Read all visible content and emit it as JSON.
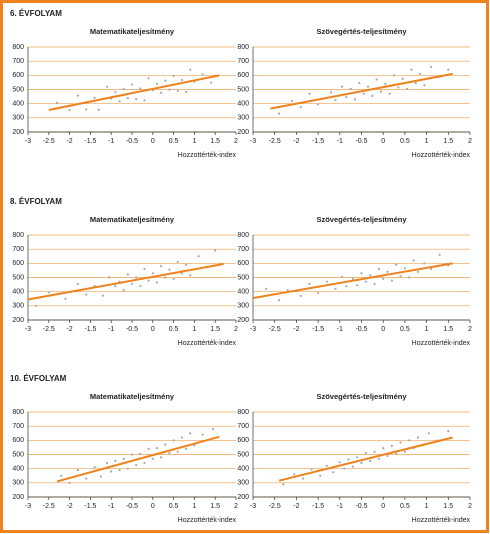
{
  "section_titles": [
    "6. ÉVFOLYAM",
    "8. ÉVFOLYAM",
    "10. ÉVFOLYAM"
  ],
  "chart_data": [
    {
      "type": "scatter",
      "title": "Matematikateljesítmény",
      "x_label": "Hozzottérték-index",
      "xlim": [
        -3,
        2
      ],
      "xticks": [
        -3,
        -2.5,
        -2,
        -1.5,
        -1,
        -0.5,
        0,
        0.5,
        1,
        1.5,
        2
      ],
      "ylim": [
        200,
        800
      ],
      "yticks": [
        200,
        300,
        400,
        500,
        600,
        700,
        800
      ],
      "grid": true,
      "points": {
        "color": "#a8a8a8",
        "x": [
          -2.3,
          -2.0,
          -1.8,
          -1.6,
          -1.4,
          -1.3,
          -1.1,
          -1.0,
          -0.9,
          -0.8,
          -0.7,
          -0.6,
          -0.5,
          -0.4,
          -0.3,
          -0.2,
          -0.1,
          0,
          0.1,
          0.2,
          0.3,
          0.4,
          0.5,
          0.6,
          0.7,
          0.8,
          0.9,
          1.0,
          1.2,
          1.4
        ],
        "y": [
          407,
          355,
          457,
          359,
          441,
          357,
          519,
          435,
          481,
          417,
          503,
          439,
          535,
          431,
          507,
          423,
          579,
          495,
          541,
          477,
          563,
          499,
          595,
          491,
          567,
          483,
          639,
          555,
          607,
          549
        ]
      },
      "trend": {
        "color": "#f0821e",
        "x": [
          -2.5,
          1.6
        ],
        "y": [
          355,
          600
        ]
      }
    },
    {
      "type": "scatter",
      "title": "Szövegértés-teljesítmény",
      "x_label": "Hozzottérték-index",
      "xlim": [
        -3,
        2
      ],
      "xticks": [
        -3,
        -2.5,
        -2,
        -1.5,
        -1,
        -0.5,
        0,
        0.5,
        1,
        1.5,
        2
      ],
      "ylim": [
        200,
        800
      ],
      "yticks": [
        200,
        300,
        400,
        500,
        600,
        700,
        800
      ],
      "grid": true,
      "points": {
        "color": "#a8a8a8",
        "x": [
          -2.4,
          -2.1,
          -1.9,
          -1.7,
          -1.5,
          -1.2,
          -1.1,
          -0.95,
          -0.85,
          -0.75,
          -0.65,
          -0.55,
          -0.45,
          -0.35,
          -0.25,
          -0.15,
          -0.05,
          0.05,
          0.15,
          0.25,
          0.35,
          0.45,
          0.55,
          0.65,
          0.75,
          0.85,
          0.95,
          1.1,
          1.3,
          1.5
        ],
        "y": [
          330,
          420,
          376,
          470,
          395,
          480,
          425,
          520,
          446,
          505,
          430,
          545,
          470,
          520,
          455,
          570,
          485,
          540,
          470,
          600,
          515,
          575,
          505,
          640,
          545,
          610,
          530,
          660,
          590,
          640
        ]
      },
      "trend": {
        "color": "#f0821e",
        "x": [
          -2.6,
          1.6
        ],
        "y": [
          365,
          610
        ]
      }
    },
    {
      "type": "scatter",
      "title": "Matematikateljesítmény",
      "x_label": "Hozzottérték-index",
      "xlim": [
        -3,
        2
      ],
      "xticks": [
        -3,
        -2.5,
        -2,
        -1.5,
        -1,
        -0.5,
        0,
        0.5,
        1,
        1.5,
        2
      ],
      "ylim": [
        200,
        800
      ],
      "yticks": [
        200,
        300,
        400,
        500,
        600,
        700,
        800
      ],
      "grid": true,
      "points": {
        "color": "#a8a8a8",
        "x": [
          -2.8,
          -2.5,
          -2.1,
          -1.8,
          -1.6,
          -1.4,
          -1.2,
          -1.05,
          -0.9,
          -0.8,
          -0.7,
          -0.6,
          -0.5,
          -0.4,
          -0.3,
          -0.2,
          -0.1,
          0,
          0.1,
          0.2,
          0.3,
          0.4,
          0.5,
          0.6,
          0.7,
          0.8,
          0.9,
          1.1,
          1.3,
          1.5
        ],
        "y": [
          300,
          395,
          350,
          455,
          380,
          440,
          372,
          500,
          440,
          470,
          412,
          522,
          455,
          500,
          440,
          560,
          478,
          530,
          465,
          580,
          500,
          555,
          490,
          610,
          530,
          590,
          515,
          650,
          575,
          690
        ]
      },
      "trend": {
        "color": "#f0821e",
        "x": [
          -3,
          1.7
        ],
        "y": [
          345,
          595
        ]
      }
    },
    {
      "type": "scatter",
      "title": "Szövegértés-teljesítmény",
      "x_label": "Hozzottérték-index",
      "xlim": [
        -3,
        2
      ],
      "xticks": [
        -3,
        -2.5,
        -2,
        -1.5,
        -1,
        -0.5,
        0,
        0.5,
        1,
        1.5,
        2
      ],
      "ylim": [
        200,
        800
      ],
      "yticks": [
        200,
        300,
        400,
        500,
        600,
        700,
        800
      ],
      "grid": true,
      "points": {
        "color": "#a8a8a8",
        "x": [
          -2.7,
          -2.4,
          -2.2,
          -1.9,
          -1.7,
          -1.5,
          -1.3,
          -1.1,
          -0.95,
          -0.85,
          -0.7,
          -0.6,
          -0.5,
          -0.4,
          -0.3,
          -0.2,
          -0.1,
          0,
          0.1,
          0.2,
          0.3,
          0.4,
          0.5,
          0.6,
          0.7,
          0.8,
          0.95,
          1.1,
          1.3,
          1.5
        ],
        "y": [
          420,
          340,
          410,
          370,
          455,
          392,
          470,
          420,
          505,
          438,
          490,
          445,
          530,
          470,
          515,
          455,
          560,
          490,
          540,
          478,
          590,
          510,
          565,
          500,
          620,
          540,
          600,
          560,
          660,
          585
        ]
      },
      "trend": {
        "color": "#f0821e",
        "x": [
          -3,
          1.6
        ],
        "y": [
          355,
          600
        ]
      }
    },
    {
      "type": "scatter",
      "title": "Matematikateljesítmény",
      "x_label": "Hozzottérték-index",
      "xlim": [
        -3,
        2
      ],
      "xticks": [
        -3,
        -2.5,
        -2,
        -1.5,
        -1,
        -0.5,
        0,
        0.5,
        1,
        1.5,
        2
      ],
      "ylim": [
        200,
        800
      ],
      "yticks": [
        200,
        300,
        400,
        500,
        600,
        700,
        800
      ],
      "grid": true,
      "points": {
        "color": "#a8a8a8",
        "x": [
          -2.2,
          -2.0,
          -1.8,
          -1.6,
          -1.4,
          -1.25,
          -1.1,
          -1.0,
          -0.9,
          -0.8,
          -0.7,
          -0.6,
          -0.5,
          -0.4,
          -0.3,
          -0.2,
          -0.1,
          0,
          0.1,
          0.2,
          0.3,
          0.4,
          0.5,
          0.6,
          0.7,
          0.8,
          0.9,
          1.0,
          1.2,
          1.45
        ],
        "y": [
          350,
          300,
          390,
          330,
          410,
          345,
          440,
          380,
          455,
          390,
          470,
          400,
          500,
          425,
          505,
          440,
          540,
          470,
          545,
          480,
          570,
          510,
          600,
          520,
          620,
          540,
          650,
          565,
          640,
          680
        ]
      },
      "trend": {
        "color": "#f0821e",
        "x": [
          -2.3,
          1.6
        ],
        "y": [
          310,
          625
        ]
      }
    },
    {
      "type": "scatter",
      "title": "Szövegértés-teljesítmény",
      "x_label": "Hozzottérték-index",
      "xlim": [
        -3,
        2
      ],
      "xticks": [
        -3,
        -2.5,
        -2,
        -1.5,
        -1,
        -0.5,
        0,
        0.5,
        1,
        1.5,
        2
      ],
      "ylim": [
        200,
        800
      ],
      "yticks": [
        200,
        300,
        400,
        500,
        600,
        700,
        800
      ],
      "grid": true,
      "points": {
        "color": "#a8a8a8",
        "x": [
          -2.3,
          -2.05,
          -1.85,
          -1.65,
          -1.45,
          -1.3,
          -1.15,
          -1.0,
          -0.9,
          -0.8,
          -0.7,
          -0.6,
          -0.5,
          -0.4,
          -0.3,
          -0.2,
          -0.1,
          0,
          0.1,
          0.2,
          0.3,
          0.4,
          0.5,
          0.6,
          0.7,
          0.8,
          0.9,
          1.05,
          1.25,
          1.5
        ],
        "y": [
          290,
          360,
          330,
          395,
          350,
          420,
          375,
          445,
          400,
          465,
          415,
          480,
          440,
          510,
          455,
          520,
          470,
          545,
          490,
          560,
          505,
          585,
          520,
          600,
          545,
          620,
          565,
          650,
          600,
          665
        ]
      },
      "trend": {
        "color": "#f0821e",
        "x": [
          -2.4,
          1.6
        ],
        "y": [
          315,
          620
        ]
      }
    }
  ]
}
